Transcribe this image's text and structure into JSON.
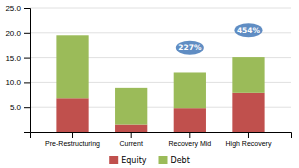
{
  "chart_data": {
    "type": "bar",
    "stacked": true,
    "categories": [
      "Pre-Restructuring",
      "Current",
      "Recovery Mid",
      "High Recovery"
    ],
    "series": [
      {
        "name": "Equity",
        "color": "#c0504d",
        "values": [
          6.8,
          1.5,
          4.8,
          7.9
        ]
      },
      {
        "name": "Debt",
        "color": "#9bbb59",
        "values": [
          12.7,
          7.4,
          7.2,
          7.2
        ]
      }
    ],
    "ylim": [
      0,
      25
    ],
    "yticks": [
      {
        "value": 5.0,
        "label": "5.0"
      },
      {
        "value": 10.0,
        "label": "10.0"
      },
      {
        "value": 15.0,
        "label": "15.0"
      },
      {
        "value": 20.0,
        "label": "20.0"
      },
      {
        "value": 25.0,
        "label": "25.0"
      }
    ],
    "grid": true,
    "legend": "bottom",
    "annotations": [
      {
        "text": "227%",
        "x": "Recovery Mid",
        "y": 17.0,
        "color": "#4f81bd"
      },
      {
        "text": "454%",
        "x": "High Recovery",
        "y": 20.5,
        "color": "#4f81bd"
      }
    ]
  }
}
